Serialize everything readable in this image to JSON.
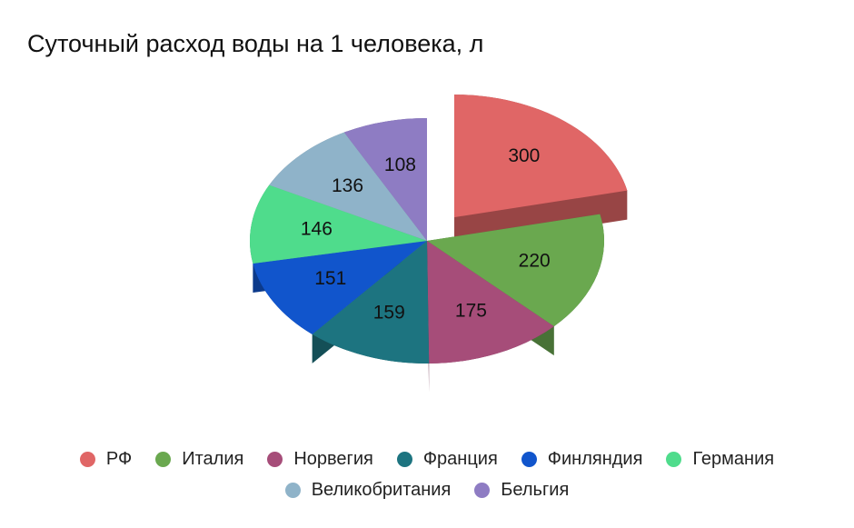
{
  "chart_data": {
    "type": "pie",
    "title": "Суточный расход воды на 1 человека, л",
    "categories": [
      "РФ",
      "Италия",
      "Норвегия",
      "Франция",
      "Финляндия",
      "Германия",
      "Великобритания",
      "Бельгия"
    ],
    "values": [
      300,
      220,
      175,
      159,
      151,
      146,
      136,
      108
    ],
    "colors": [
      "#e06666",
      "#6aa84f",
      "#a64d79",
      "#1d7480",
      "#1155cc",
      "#4fdc8c",
      "#8fb3c9",
      "#8e7cc3"
    ],
    "legend": "bottom"
  }
}
